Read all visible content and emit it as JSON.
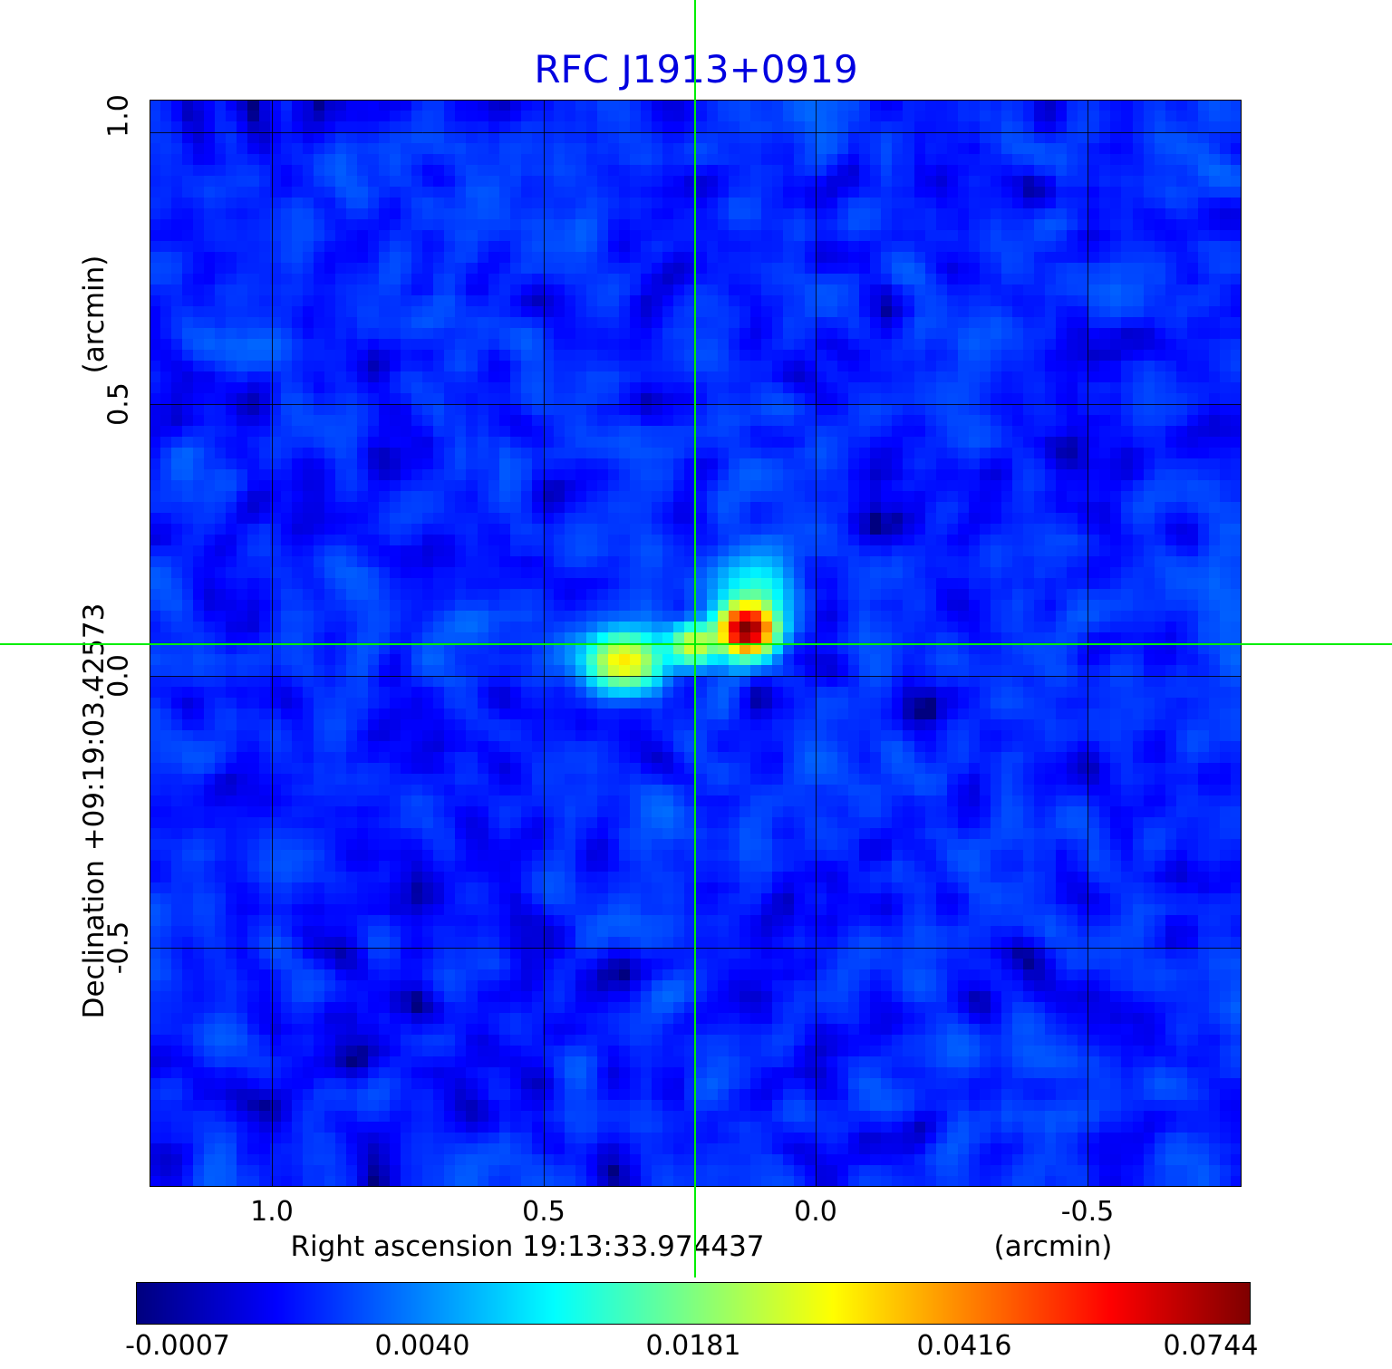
{
  "title": "RFC J1913+0919",
  "colors": {
    "title": "#0000e0",
    "crosshair": "#00ee00",
    "axis_text": "#000000"
  },
  "axes": {
    "y_unit": "(arcmin)",
    "y_label": "Declination  +09:19:03.42573",
    "x_label": "Right ascension  19:13:33.974437",
    "x_unit": "(arcmin)",
    "x_ticks": [
      "1.0",
      "0.5",
      "0.0",
      "-0.5"
    ],
    "y_ticks": [
      "1.0",
      "0.5",
      "0.0",
      "-0.5"
    ]
  },
  "colorbar": {
    "labels": [
      "-0.0007",
      "0.0040",
      "0.0181",
      "0.0416",
      "0.0744"
    ]
  },
  "chart_data": {
    "type": "heatmap",
    "title": "RFC J1913+0919",
    "xlabel": "Right ascension 19:13:33.974437 (arcmin)",
    "ylabel": "Declination +09:19:03.42573 (arcmin)",
    "xlim": [
      1.225,
      -0.783
    ],
    "ylim": [
      -0.94,
      1.06
    ],
    "x_tick_values": [
      1.0,
      0.5,
      0.0,
      -0.5
    ],
    "y_tick_values": [
      1.0,
      0.5,
      0.0,
      -0.5
    ],
    "grid": true,
    "legend": false,
    "colormap": "jet",
    "scale": "sqrt",
    "vmin": -0.0007,
    "vmax": 0.0744,
    "colorbar_tick_values": [
      -0.0007,
      0.004,
      0.0181,
      0.0416,
      0.0744
    ],
    "crosshair_x_arcmin": 0.222,
    "crosshair_y_arcmin": 0.058,
    "background_mean": 0.0012,
    "background_rms": 0.00065,
    "grid_cells": 100,
    "sources": [
      {
        "x": 0.128,
        "y": 0.085,
        "amp": 0.072,
        "sx": 0.031,
        "sy": 0.028
      },
      {
        "x": 0.112,
        "y": 0.15,
        "amp": 0.011,
        "sx": 0.045,
        "sy": 0.055
      },
      {
        "x": 0.225,
        "y": 0.058,
        "amp": 0.024,
        "sx": 0.027,
        "sy": 0.025
      },
      {
        "x": 0.352,
        "y": 0.028,
        "amp": 0.027,
        "sx": 0.044,
        "sy": 0.034
      }
    ]
  }
}
